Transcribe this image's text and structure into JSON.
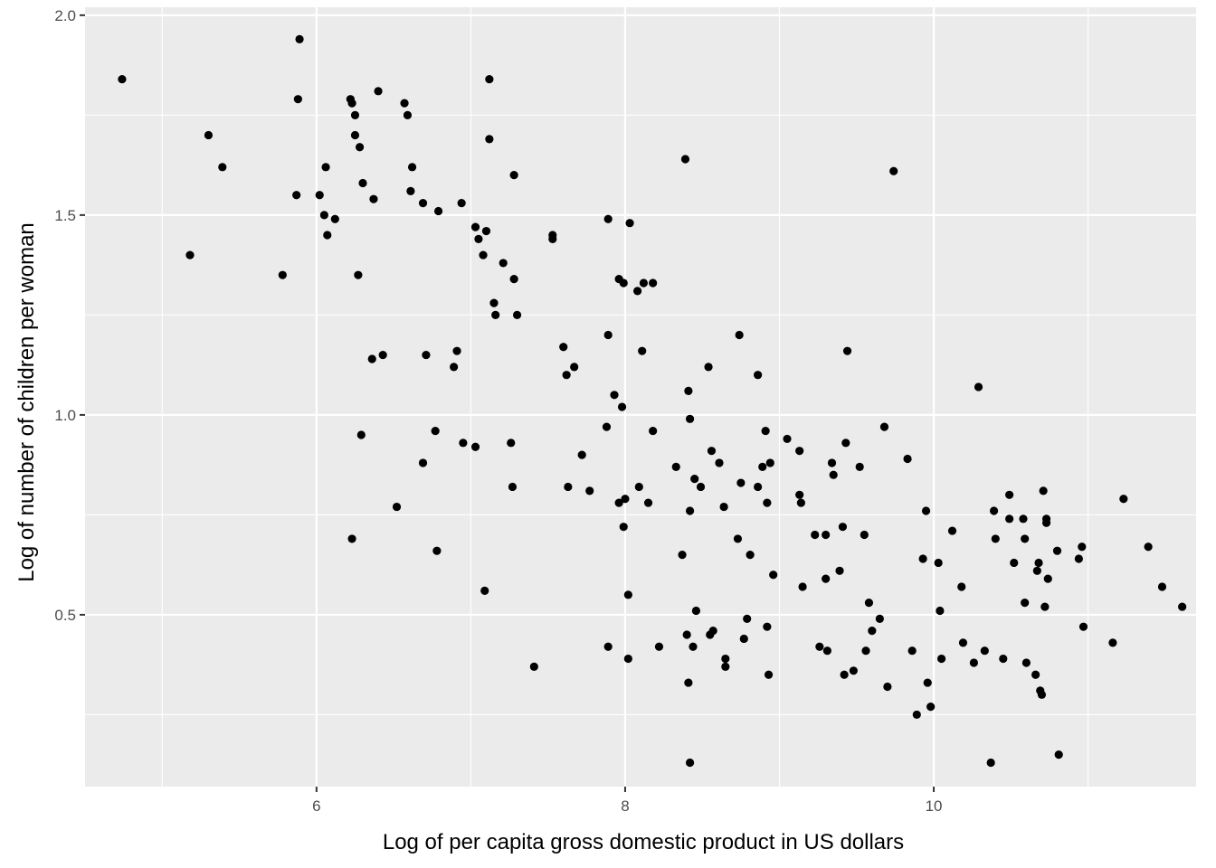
{
  "chart_data": {
    "type": "scatter",
    "xlabel": "Log of per capita gross domestic product in US dollars",
    "ylabel": "Log of number of children per woman",
    "xlim": [
      4.5,
      11.7
    ],
    "ylim": [
      0.07,
      2.02
    ],
    "x_ticks": [
      6,
      8,
      10
    ],
    "x_tick_labels": [
      "6",
      "8",
      "10"
    ],
    "y_ticks": [
      0.5,
      1.0,
      1.5,
      2.0
    ],
    "y_tick_labels": [
      "0.5",
      "1.0",
      "1.5",
      "2.0"
    ],
    "grid": true,
    "panel_color": "#ebebeb",
    "grid_color": "#ffffff",
    "point_color": "#000000",
    "points": [
      [
        4.74,
        1.84
      ],
      [
        5.18,
        1.4
      ],
      [
        5.3,
        1.7
      ],
      [
        5.39,
        1.62
      ],
      [
        5.78,
        1.35
      ],
      [
        5.87,
        1.55
      ],
      [
        5.88,
        1.79
      ],
      [
        5.89,
        1.94
      ],
      [
        6.02,
        1.55
      ],
      [
        6.05,
        1.5
      ],
      [
        6.06,
        1.62
      ],
      [
        6.07,
        1.45
      ],
      [
        6.12,
        1.49
      ],
      [
        6.22,
        1.79
      ],
      [
        6.23,
        1.78
      ],
      [
        6.23,
        0.69
      ],
      [
        6.25,
        1.75
      ],
      [
        6.25,
        1.7
      ],
      [
        6.27,
        1.35
      ],
      [
        6.28,
        1.67
      ],
      [
        6.29,
        0.95
      ],
      [
        6.3,
        1.58
      ],
      [
        6.36,
        1.14
      ],
      [
        6.37,
        1.54
      ],
      [
        6.4,
        1.81
      ],
      [
        6.43,
        1.15
      ],
      [
        6.52,
        0.77
      ],
      [
        6.57,
        1.78
      ],
      [
        6.59,
        1.75
      ],
      [
        6.61,
        1.56
      ],
      [
        6.62,
        1.62
      ],
      [
        6.69,
        1.53
      ],
      [
        6.69,
        0.88
      ],
      [
        6.71,
        1.15
      ],
      [
        6.77,
        0.96
      ],
      [
        6.78,
        0.66
      ],
      [
        6.79,
        1.51
      ],
      [
        6.89,
        1.12
      ],
      [
        6.91,
        1.16
      ],
      [
        6.94,
        1.53
      ],
      [
        6.95,
        0.93
      ],
      [
        7.03,
        0.92
      ],
      [
        7.03,
        1.47
      ],
      [
        7.05,
        1.44
      ],
      [
        7.08,
        1.4
      ],
      [
        7.09,
        0.56
      ],
      [
        7.1,
        1.46
      ],
      [
        7.12,
        1.84
      ],
      [
        7.12,
        1.69
      ],
      [
        7.15,
        1.28
      ],
      [
        7.16,
        1.25
      ],
      [
        7.21,
        1.38
      ],
      [
        7.26,
        0.93
      ],
      [
        7.27,
        0.82
      ],
      [
        7.28,
        1.34
      ],
      [
        7.28,
        1.6
      ],
      [
        7.3,
        1.25
      ],
      [
        7.41,
        0.37
      ],
      [
        7.53,
        1.45
      ],
      [
        7.53,
        1.44
      ],
      [
        7.6,
        1.17
      ],
      [
        7.62,
        1.1
      ],
      [
        7.63,
        0.82
      ],
      [
        7.67,
        1.12
      ],
      [
        7.72,
        0.9
      ],
      [
        7.77,
        0.81
      ],
      [
        7.88,
        0.97
      ],
      [
        7.89,
        1.49
      ],
      [
        7.89,
        0.42
      ],
      [
        7.89,
        1.2
      ],
      [
        7.93,
        1.05
      ],
      [
        7.96,
        1.34
      ],
      [
        7.96,
        0.78
      ],
      [
        7.98,
        1.02
      ],
      [
        7.99,
        1.33
      ],
      [
        7.99,
        0.72
      ],
      [
        8.0,
        0.79
      ],
      [
        8.02,
        0.55
      ],
      [
        8.02,
        0.39
      ],
      [
        8.03,
        1.48
      ],
      [
        8.08,
        1.31
      ],
      [
        8.09,
        0.82
      ],
      [
        8.11,
        1.16
      ],
      [
        8.12,
        1.33
      ],
      [
        8.15,
        0.78
      ],
      [
        8.18,
        1.33
      ],
      [
        8.18,
        0.96
      ],
      [
        8.22,
        0.42
      ],
      [
        8.33,
        0.87
      ],
      [
        8.37,
        0.65
      ],
      [
        8.39,
        1.64
      ],
      [
        8.4,
        0.45
      ],
      [
        8.41,
        1.06
      ],
      [
        8.41,
        0.33
      ],
      [
        8.42,
        0.76
      ],
      [
        8.42,
        0.13
      ],
      [
        8.42,
        0.99
      ],
      [
        8.44,
        0.42
      ],
      [
        8.45,
        0.84
      ],
      [
        8.46,
        0.51
      ],
      [
        8.49,
        0.82
      ],
      [
        8.54,
        1.12
      ],
      [
        8.55,
        0.45
      ],
      [
        8.56,
        0.91
      ],
      [
        8.57,
        0.46
      ],
      [
        8.61,
        0.88
      ],
      [
        8.64,
        0.77
      ],
      [
        8.65,
        0.39
      ],
      [
        8.65,
        0.37
      ],
      [
        8.73,
        0.69
      ],
      [
        8.74,
        1.2
      ],
      [
        8.75,
        0.83
      ],
      [
        8.77,
        0.44
      ],
      [
        8.79,
        0.49
      ],
      [
        8.81,
        0.65
      ],
      [
        8.86,
        1.1
      ],
      [
        8.86,
        0.82
      ],
      [
        8.89,
        0.87
      ],
      [
        8.91,
        0.96
      ],
      [
        8.92,
        0.78
      ],
      [
        8.92,
        0.47
      ],
      [
        8.93,
        0.35
      ],
      [
        8.94,
        0.88
      ],
      [
        8.96,
        0.6
      ],
      [
        9.05,
        0.94
      ],
      [
        9.13,
        0.8
      ],
      [
        9.13,
        0.91
      ],
      [
        9.14,
        0.78
      ],
      [
        9.15,
        0.57
      ],
      [
        9.23,
        0.7
      ],
      [
        9.26,
        0.42
      ],
      [
        9.3,
        0.59
      ],
      [
        9.3,
        0.7
      ],
      [
        9.31,
        0.41
      ],
      [
        9.34,
        0.88
      ],
      [
        9.35,
        0.85
      ],
      [
        9.39,
        0.61
      ],
      [
        9.41,
        0.72
      ],
      [
        9.42,
        0.35
      ],
      [
        9.43,
        0.93
      ],
      [
        9.44,
        1.16
      ],
      [
        9.48,
        0.36
      ],
      [
        9.52,
        0.87
      ],
      [
        9.55,
        0.7
      ],
      [
        9.56,
        0.41
      ],
      [
        9.58,
        0.53
      ],
      [
        9.6,
        0.46
      ],
      [
        9.65,
        0.49
      ],
      [
        9.68,
        0.97
      ],
      [
        9.7,
        0.32
      ],
      [
        9.74,
        1.61
      ],
      [
        9.83,
        0.89
      ],
      [
        9.86,
        0.41
      ],
      [
        9.89,
        0.25
      ],
      [
        9.93,
        0.64
      ],
      [
        9.95,
        0.76
      ],
      [
        9.96,
        0.33
      ],
      [
        9.98,
        0.27
      ],
      [
        10.03,
        0.63
      ],
      [
        10.04,
        0.51
      ],
      [
        10.05,
        0.39
      ],
      [
        10.12,
        0.71
      ],
      [
        10.18,
        0.57
      ],
      [
        10.19,
        0.43
      ],
      [
        10.26,
        0.38
      ],
      [
        10.29,
        1.07
      ],
      [
        10.33,
        0.41
      ],
      [
        10.37,
        0.13
      ],
      [
        10.39,
        0.76
      ],
      [
        10.4,
        0.69
      ],
      [
        10.45,
        0.39
      ],
      [
        10.49,
        0.8
      ],
      [
        10.49,
        0.74
      ],
      [
        10.52,
        0.63
      ],
      [
        10.58,
        0.74
      ],
      [
        10.59,
        0.69
      ],
      [
        10.59,
        0.53
      ],
      [
        10.6,
        0.38
      ],
      [
        10.66,
        0.35
      ],
      [
        10.67,
        0.61
      ],
      [
        10.68,
        0.63
      ],
      [
        10.69,
        0.31
      ],
      [
        10.7,
        0.3
      ],
      [
        10.71,
        0.81
      ],
      [
        10.72,
        0.52
      ],
      [
        10.73,
        0.74
      ],
      [
        10.73,
        0.73
      ],
      [
        10.74,
        0.59
      ],
      [
        10.8,
        0.66
      ],
      [
        10.81,
        0.15
      ],
      [
        10.94,
        0.64
      ],
      [
        10.96,
        0.67
      ],
      [
        10.97,
        0.47
      ],
      [
        11.16,
        0.43
      ],
      [
        11.23,
        0.79
      ],
      [
        11.39,
        0.67
      ],
      [
        11.48,
        0.57
      ],
      [
        11.61,
        0.52
      ]
    ]
  }
}
